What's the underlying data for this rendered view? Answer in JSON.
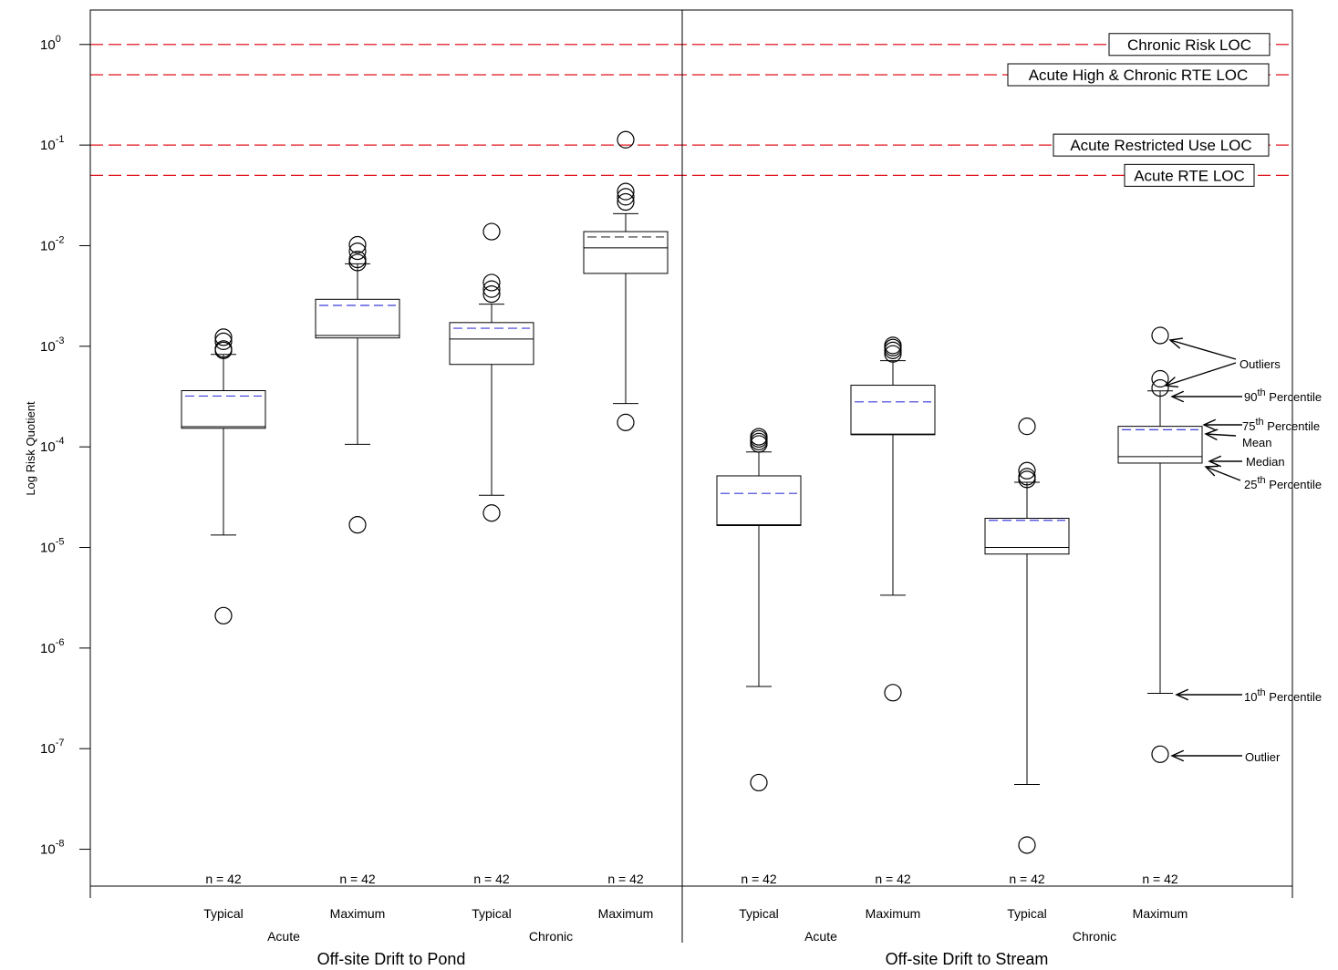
{
  "chart_data": {
    "type": "box",
    "ylabel": "Log Risk Quotient",
    "yscale": "log",
    "ylim": [
      4.3e-09,
      2.2
    ],
    "yticks": [
      {
        "value": 1,
        "base": "10",
        "exp": "0"
      },
      {
        "value": 0.1,
        "base": "10",
        "exp": "-1"
      },
      {
        "value": 0.01,
        "base": "10",
        "exp": "-2"
      },
      {
        "value": 0.001,
        "base": "10",
        "exp": "-3"
      },
      {
        "value": 0.0001,
        "base": "10",
        "exp": "-4"
      },
      {
        "value": 1e-05,
        "base": "10",
        "exp": "-5"
      },
      {
        "value": 1e-06,
        "base": "10",
        "exp": "-6"
      },
      {
        "value": 1e-07,
        "base": "10",
        "exp": "-7"
      },
      {
        "value": 1e-08,
        "base": "10",
        "exp": "-8"
      }
    ],
    "panels": [
      {
        "label": "Off-site Drift to Pond",
        "groups": [
          {
            "label": "Acute"
          },
          {
            "label": "Chronic"
          }
        ]
      },
      {
        "label": "Off-site Drift to Stream",
        "groups": [
          {
            "label": "Acute"
          },
          {
            "label": "Chronic"
          }
        ]
      }
    ],
    "reference_lines": [
      {
        "label": "Chronic Risk LOC",
        "value": 1.0,
        "color": "#e0141e"
      },
      {
        "label": "Acute High & Chronic RTE LOC",
        "value": 0.5,
        "color": "#e0141e"
      },
      {
        "label": "Acute Restricted Use LOC",
        "value": 0.1,
        "color": "#e0141e"
      },
      {
        "label": "Acute RTE LOC",
        "value": 0.05,
        "color": "#e0141e"
      }
    ],
    "mean_color": "#3c3cdc",
    "boxes": [
      {
        "category": "Typical",
        "n_label": "n = 42",
        "p10": 1.33e-05,
        "p25": 0.000153,
        "median": 0.000159,
        "p75": 0.000362,
        "p90": 0.00083,
        "mean": 0.00032,
        "mean_color": "#3c3cdc",
        "outliers": [
          2.1e-06,
          0.00091,
          0.00094,
          0.00112,
          0.00123
        ]
      },
      {
        "category": "Maximum",
        "n_label": "n = 42",
        "p10": 0.000106,
        "p25": 0.00121,
        "median": 0.00128,
        "p75": 0.00293,
        "p90": 0.0066,
        "mean": 0.00255,
        "mean_color": "#3c3cdc",
        "outliers": [
          1.68e-05,
          0.0068,
          0.0073,
          0.0088,
          0.0102
        ]
      },
      {
        "category": "Typical",
        "n_label": "n = 42",
        "p10": 3.3e-05,
        "p25": 0.00066,
        "median": 0.00118,
        "p75": 0.00172,
        "p90": 0.00262,
        "mean": 0.00151,
        "mean_color": "#3c3cdc",
        "outliers": [
          2.2e-05,
          0.0033,
          0.0037,
          0.0043,
          0.0138
        ]
      },
      {
        "category": "Maximum",
        "n_label": "n = 42",
        "p10": 0.00027,
        "p25": 0.0053,
        "median": 0.0095,
        "p75": 0.0138,
        "p90": 0.0208,
        "mean": 0.0122,
        "mean_color": "#333333",
        "outliers": [
          0.000175,
          0.0272,
          0.0306,
          0.0345,
          0.113
        ]
      },
      {
        "category": "Typical",
        "n_label": "n = 42",
        "p10": 4.15e-07,
        "p25": 1.65e-05,
        "median": 1.68e-05,
        "p75": 5.15e-05,
        "p90": 8.9e-05,
        "mean": 3.45e-05,
        "mean_color": "#3c3cdc",
        "outliers": [
          4.6e-08,
          0.000107,
          0.000113,
          0.00012,
          0.000126
        ]
      },
      {
        "category": "Maximum",
        "n_label": "n = 42",
        "p10": 3.35e-06,
        "p25": 0.000132,
        "median": 0.000134,
        "p75": 0.00041,
        "p90": 0.00072,
        "mean": 0.00028,
        "mean_color": "#3c3cdc",
        "outliers": [
          3.6e-07,
          0.00084,
          0.00091,
          0.00097,
          0.00102
        ]
      },
      {
        "category": "Typical",
        "n_label": "n = 42",
        "p10": 4.4e-08,
        "p25": 8.6e-06,
        "median": 1e-05,
        "p75": 1.95e-05,
        "p90": 4.45e-05,
        "mean": 1.86e-05,
        "mean_color": "#3c3cdc",
        "outliers": [
          1.1e-08,
          4.75e-05,
          5.05e-05,
          5.8e-05,
          0.00016
        ]
      },
      {
        "category": "Maximum",
        "n_label": "n = 42",
        "p10": 3.55e-07,
        "p25": 6.9e-05,
        "median": 8e-05,
        "p75": 0.00016,
        "p90": 0.00036,
        "mean": 0.000148,
        "mean_color": "#3c3cdc",
        "outliers": [
          8.8e-08,
          0.000385,
          0.000475,
          0.00128
        ]
      }
    ],
    "legend_annotations": [
      {
        "id": "outliers",
        "label": "Outliers",
        "sup": ""
      },
      {
        "id": "p90",
        "label": "90",
        "sup": "th",
        "suffix": " Percentile"
      },
      {
        "id": "p75",
        "label": "75",
        "sup": "th",
        "suffix": " Percentile"
      },
      {
        "id": "mean",
        "label": "Mean",
        "sup": ""
      },
      {
        "id": "median",
        "label": "Median",
        "sup": ""
      },
      {
        "id": "p25",
        "label": "25",
        "sup": "th",
        "suffix": " Percentile"
      },
      {
        "id": "p10",
        "label": "10",
        "sup": "th",
        "suffix": " Percentile"
      },
      {
        "id": "outlier",
        "label": "Outlier",
        "sup": ""
      }
    ]
  }
}
